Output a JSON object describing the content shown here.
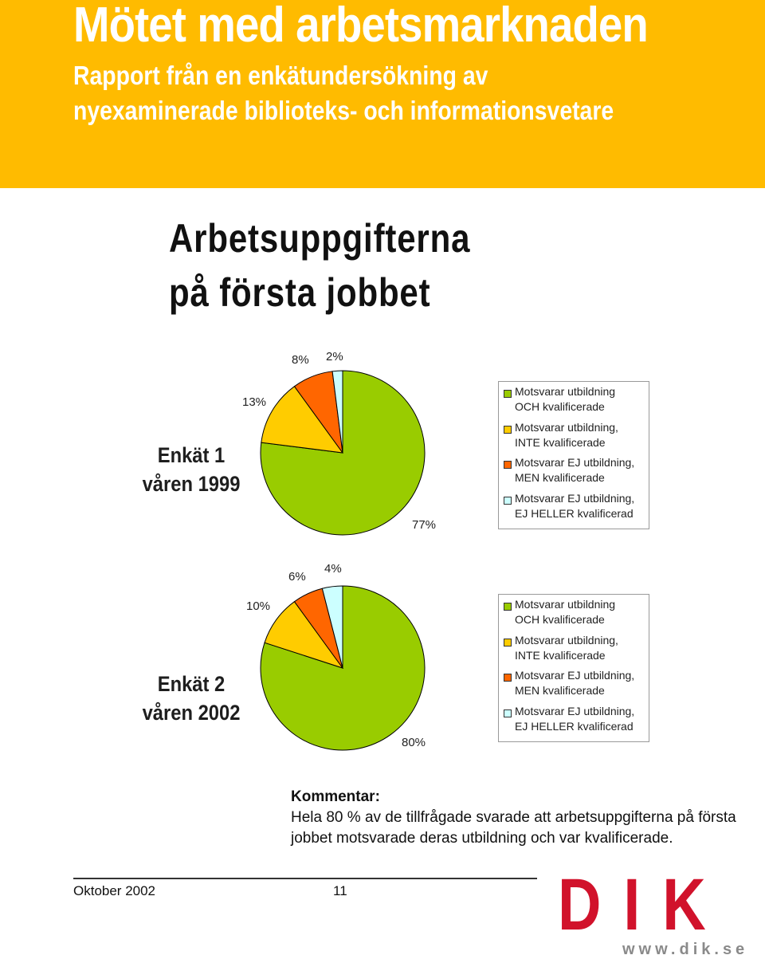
{
  "header": {
    "title": "Mötet med arbetsmarknaden",
    "subtitle_line1": "Rapport från en enkätundersökning av",
    "subtitle_line2": "nyexaminerade biblioteks- och informationsvetare"
  },
  "section": {
    "title_line1": "Arbetsuppgifterna",
    "title_line2": "på första jobbet"
  },
  "colors": {
    "banner": "#ffbb00",
    "och": "#99cc00",
    "inte": "#ffcc00",
    "men": "#ff6600",
    "ej_heller": "#ccffff",
    "logo": "#d1122b"
  },
  "chart_data": [
    {
      "type": "pie",
      "label_line1": "Enkät 1",
      "label_line2": "våren 1999",
      "slices": [
        {
          "name": "Motsvarar utbildning OCH kvalificerade",
          "value": 77,
          "label": "77%"
        },
        {
          "name": "Motsvarar utbildning, INTE kvalificerade",
          "value": 13,
          "label": "13%"
        },
        {
          "name": "Motsvarar EJ utbildning, MEN kvalificerade",
          "value": 8,
          "label": "8%"
        },
        {
          "name": "Motsvarar EJ utbildning, EJ HELLER kvalificerad",
          "value": 2,
          "label": "2%"
        }
      ],
      "legend": [
        "Motsvarar utbildning\nOCH kvalificerade",
        "Motsvarar utbildning,\nINTE kvalificerade",
        "Motsvarar EJ utbildning,\nMEN kvalificerade",
        "Motsvarar EJ utbildning,\nEJ HELLER kvalificerad"
      ],
      "legend_position": "right"
    },
    {
      "type": "pie",
      "label_line1": "Enkät 2",
      "label_line2": "våren 2002",
      "slices": [
        {
          "name": "Motsvarar utbildning OCH kvalificerade",
          "value": 80,
          "label": "80%"
        },
        {
          "name": "Motsvarar utbildning, INTE kvalificerade",
          "value": 10,
          "label": "10%"
        },
        {
          "name": "Motsvarar EJ utbildning, MEN kvalificerade",
          "value": 6,
          "label": "6%"
        },
        {
          "name": "Motsvarar EJ utbildning, EJ HELLER kvalificerad",
          "value": 4,
          "label": "4%"
        }
      ],
      "legend": [
        "Motsvarar utbildning\nOCH kvalificerade",
        "Motsvarar utbildning,\nINTE kvalificerade",
        "Motsvarar EJ utbildning,\nMEN kvalificerade",
        "Motsvarar EJ utbildning,\nEJ HELLER kvalificerad"
      ],
      "legend_position": "right"
    }
  ],
  "comment": {
    "heading": "Kommentar:",
    "body": "Hela 80 % av de tillfrågade svarade att arbetsuppgifterna på första jobbet motsvarade deras utbildning och var kvalificerade."
  },
  "footer": {
    "date": "Oktober 2002",
    "page": "11"
  },
  "logo": {
    "text": "DIK",
    "url": "www.dik.se"
  }
}
